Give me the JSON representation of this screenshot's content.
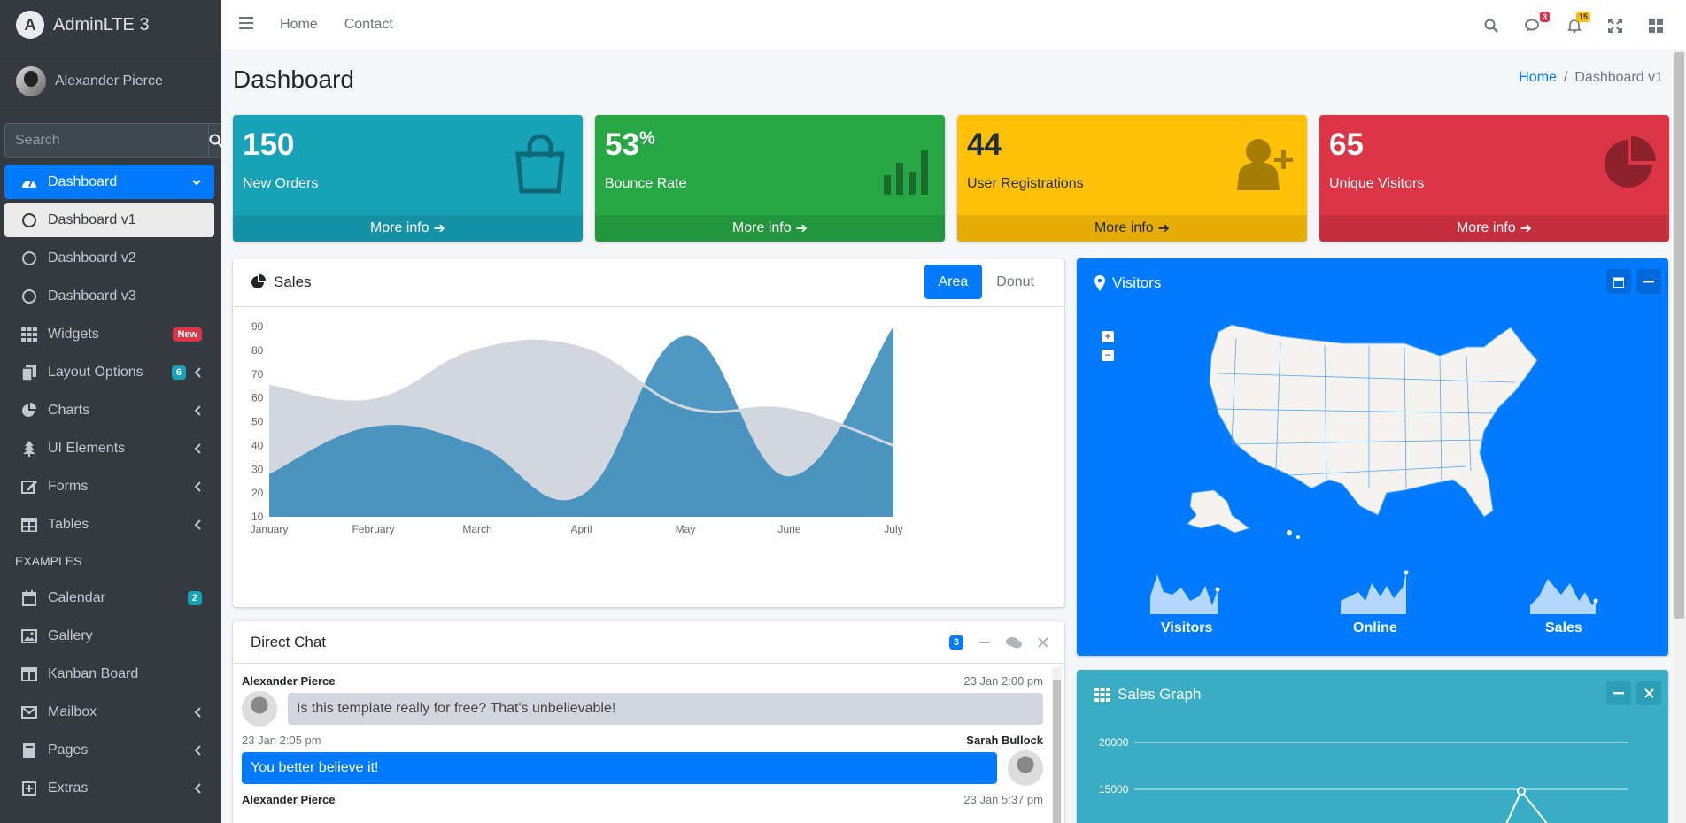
{
  "brand": {
    "name": "AdminLTE 3",
    "logo_letter": "A"
  },
  "user": {
    "name": "Alexander Pierce"
  },
  "search": {
    "placeholder": "Search"
  },
  "sidebar": {
    "items": [
      {
        "label": "Dashboard",
        "icon": "tachometer-icon"
      },
      {
        "label": "Dashboard v1"
      },
      {
        "label": "Dashboard v2"
      },
      {
        "label": "Dashboard v3"
      },
      {
        "label": "Widgets",
        "badge": "New"
      },
      {
        "label": "Layout Options",
        "badge": "6"
      },
      {
        "label": "Charts"
      },
      {
        "label": "UI Elements"
      },
      {
        "label": "Forms"
      },
      {
        "label": "Tables"
      }
    ],
    "section": "EXAMPLES",
    "examples": [
      {
        "label": "Calendar",
        "badge": "2"
      },
      {
        "label": "Gallery"
      },
      {
        "label": "Kanban Board"
      },
      {
        "label": "Mailbox"
      },
      {
        "label": "Pages"
      },
      {
        "label": "Extras"
      }
    ]
  },
  "topbar": {
    "links": [
      "Home",
      "Contact"
    ],
    "messages_count": "3",
    "notifications_count": "15"
  },
  "page": {
    "title": "Dashboard",
    "breadcrumb": [
      "Home",
      "/",
      "Dashboard v1"
    ]
  },
  "stats": [
    {
      "value": "150",
      "suffix": "",
      "label": "New Orders",
      "more": "More info",
      "color": "#17a2b8"
    },
    {
      "value": "53",
      "suffix": "%",
      "label": "Bounce Rate",
      "more": "More info",
      "color": "#28a745"
    },
    {
      "value": "44",
      "suffix": "",
      "label": "User Registrations",
      "more": "More info",
      "color": "#ffc107"
    },
    {
      "value": "65",
      "suffix": "",
      "label": "Unique Visitors",
      "more": "More info",
      "color": "#dc3545"
    }
  ],
  "sales_card": {
    "title": "Sales",
    "tabs": [
      "Area",
      "Donut"
    ]
  },
  "chart_data": {
    "type": "area",
    "categories": [
      "January",
      "February",
      "March",
      "April",
      "May",
      "June",
      "July"
    ],
    "y_ticks": [
      10,
      20,
      30,
      40,
      50,
      60,
      70,
      80,
      90
    ],
    "ylim": [
      10,
      90
    ],
    "series": [
      {
        "values": [
          65,
          59,
          80,
          81,
          56,
          55,
          40
        ],
        "color": "#d2d6de"
      },
      {
        "values": [
          28,
          48,
          40,
          19,
          86,
          27,
          90
        ],
        "color": "#3c8dbc"
      }
    ]
  },
  "chat": {
    "title": "Direct Chat",
    "count": "3",
    "messages": [
      {
        "name": "Alexander Pierce",
        "time": "23 Jan 2:00 pm",
        "text": "Is this template really for free? That's unbelievable!"
      },
      {
        "name": "Sarah Bullock",
        "time": "23 Jan 2:05 pm",
        "text": "You better believe it!"
      },
      {
        "name": "Alexander Pierce",
        "time": "23 Jan 5:37 pm"
      }
    ]
  },
  "visitors": {
    "title": "Visitors",
    "sparks": [
      "Visitors",
      "Online",
      "Sales"
    ]
  },
  "sales_graph": {
    "title": "Sales Graph",
    "ticks": [
      "20000",
      "15000"
    ]
  }
}
